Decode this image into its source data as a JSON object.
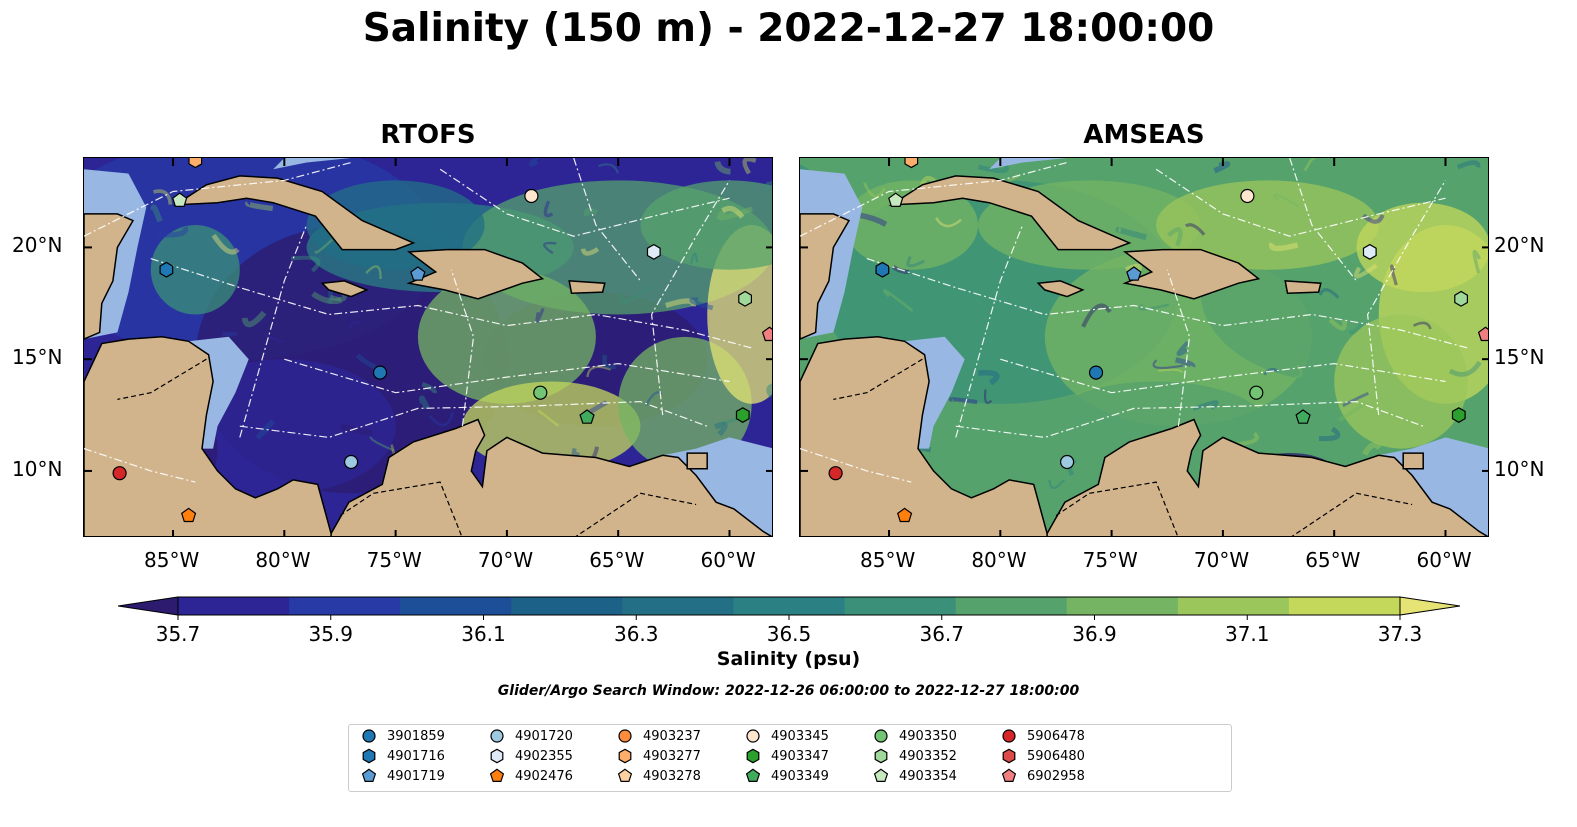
{
  "title": "Salinity (150 m) - 2022-12-27 18:00:00",
  "panels": [
    {
      "title": "RTOFS",
      "palette": "low"
    },
    {
      "title": "AMSEAS",
      "palette": "high"
    }
  ],
  "lon_ticks": [
    "85°W",
    "80°W",
    "75°W",
    "70°W",
    "65°W",
    "60°W"
  ],
  "lat_ticks": [
    "20°N",
    "15°N",
    "10°N"
  ],
  "colorbar": {
    "ticks": [
      "35.7",
      "35.9",
      "36.1",
      "36.3",
      "36.5",
      "36.7",
      "36.9",
      "37.1",
      "37.3"
    ],
    "title": "Salinity (psu)",
    "colors": [
      "#2c1b6e",
      "#2d2596",
      "#273aa5",
      "#1d4f98",
      "#1c6188",
      "#226f86",
      "#2b8083",
      "#3a9078",
      "#55a26c",
      "#74b463",
      "#9bc65b",
      "#c4d85c",
      "#e6e474"
    ],
    "range": [
      35.7,
      37.3
    ]
  },
  "search_window": "Glider/Argo Search Window: 2022-12-26 06:00:00 to 2022-12-27 18:00:00",
  "legend": [
    {
      "id": "3901859",
      "marker": "circle",
      "color": "#1f77b4"
    },
    {
      "id": "4901716",
      "marker": "hexagon",
      "color": "#1f77b4"
    },
    {
      "id": "4901719",
      "marker": "pentagon",
      "color": "#5b9bd5"
    },
    {
      "id": "4901720",
      "marker": "circle",
      "color": "#9ecae1"
    },
    {
      "id": "4902355",
      "marker": "hexagon",
      "color": "#deebf7"
    },
    {
      "id": "4902476",
      "marker": "pentagon",
      "color": "#ff7f0e"
    },
    {
      "id": "4903237",
      "marker": "circle",
      "color": "#fd8d3c"
    },
    {
      "id": "4903277",
      "marker": "hexagon",
      "color": "#fdae6b"
    },
    {
      "id": "4903278",
      "marker": "pentagon",
      "color": "#fdd0a2"
    },
    {
      "id": "4903345",
      "marker": "circle",
      "color": "#fee6ce"
    },
    {
      "id": "4903347",
      "marker": "hexagon",
      "color": "#2ca02c"
    },
    {
      "id": "4903349",
      "marker": "pentagon",
      "color": "#41ab5d"
    },
    {
      "id": "4903350",
      "marker": "circle",
      "color": "#74c476"
    },
    {
      "id": "4903352",
      "marker": "hexagon",
      "color": "#a1d99b"
    },
    {
      "id": "4903354",
      "marker": "pentagon",
      "color": "#c7e9c0"
    },
    {
      "id": "5906478",
      "marker": "circle",
      "color": "#d62728"
    },
    {
      "id": "5906480",
      "marker": "hexagon",
      "color": "#de4a4a"
    },
    {
      "id": "6902958",
      "marker": "pentagon",
      "color": "#f08080"
    }
  ],
  "floats": [
    {
      "id": "4903277",
      "lon": -84.0,
      "lat": 23.9
    },
    {
      "id": "4903354",
      "lon": -84.7,
      "lat": 22.1
    },
    {
      "id": "4901716",
      "lon": -85.3,
      "lat": 19.0
    },
    {
      "id": "4903345",
      "lon": -68.9,
      "lat": 22.3
    },
    {
      "id": "4902355",
      "lon": -63.4,
      "lat": 19.8
    },
    {
      "id": "4903352",
      "lon": -59.3,
      "lat": 17.7
    },
    {
      "id": "4901719",
      "lon": -74.0,
      "lat": 18.8
    },
    {
      "id": "6902958",
      "lon": -58.2,
      "lat": 16.1
    },
    {
      "id": "3901859",
      "lon": -75.7,
      "lat": 14.4
    },
    {
      "id": "4903350",
      "lon": -68.5,
      "lat": 13.5
    },
    {
      "id": "4903349",
      "lon": -66.4,
      "lat": 12.4
    },
    {
      "id": "4903347",
      "lon": -59.4,
      "lat": 12.5
    },
    {
      "id": "4901720",
      "lon": -77.0,
      "lat": 10.4
    },
    {
      "id": "5906478",
      "lon": -87.4,
      "lat": 9.9
    },
    {
      "id": "4902476",
      "lon": -84.3,
      "lat": 8.0
    }
  ],
  "extent": {
    "lon": [
      -89,
      -58
    ],
    "lat": [
      7,
      24
    ]
  }
}
